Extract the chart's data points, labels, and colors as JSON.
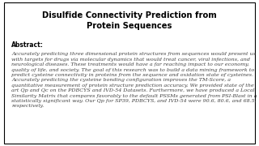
{
  "title_line1": "Disulfide Connectivity Prediction from",
  "title_line2": "Protein Sequences",
  "abstract_label": "Abstract:",
  "abstract_text": "Accurately predicting three dimensional protein structures from sequences would present us with targets for drugs via molecular dynamics that would treat cancer, viral infections, and neurological diseases. These treatments would have a far reaching impact to our economy, quality of life, and society. The goal of this research was to build a data mining framework to predict cysteine connectivity in proteins from the sequence and oxidation state of cysteines. Accurately predicting the cysteine bonding configuration improves the TM-Score, a quantitative measurement of protein structure prediction accuracy. We provided state of the art Qp and Qc on the PDBCYS and IVD-54 Datasets. Furthermore, we have produced a Local Similarity Matrix that compares favorably to the default PSSMs generated from PSI-Blast in a statistically significant way. Our Qp for SP39, PDBCYS, and IVD-54 were 90.6, 80.6, and 68.5, respectively.",
  "bg_color": "#ffffff",
  "title_color": "#000000",
  "text_color": "#404040",
  "border_color": "#000000",
  "title_fontsize": 7.2,
  "abstract_label_fontsize": 5.5,
  "body_fontsize": 4.6
}
